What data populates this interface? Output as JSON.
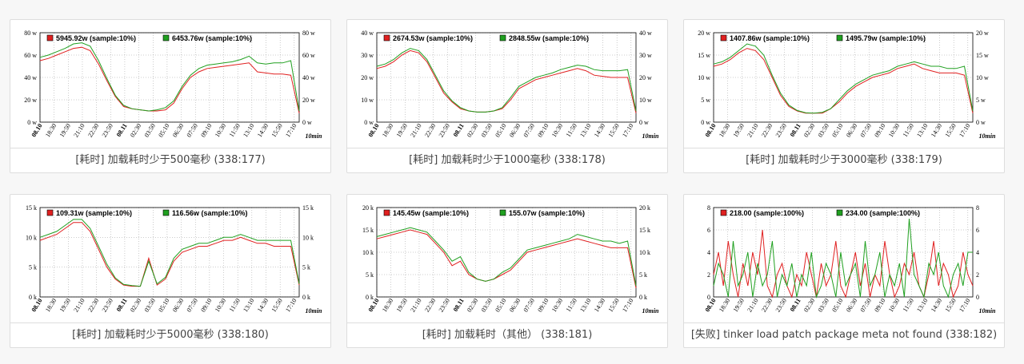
{
  "colors": {
    "red": "#e02020",
    "green": "#20a020",
    "grid": "#999999"
  },
  "xticks": [
    "08.10",
    "18:30",
    "19:50",
    "21:10",
    "22:30",
    "23:50",
    "08.11",
    "02:30",
    "03:50",
    "05:10",
    "06:30",
    "07:50",
    "09:10",
    "10:30",
    "11:50",
    "13:10",
    "14:30",
    "15:50",
    "17:10"
  ],
  "xbold": [
    "08.10",
    "08.11"
  ],
  "xunit": "10min",
  "chart_data": [
    {
      "type": "line",
      "title": "[耗时] 加载耗时少于500毫秒 (338:177)",
      "yticks": [
        "0 w",
        "20 w",
        "40 w",
        "60 w",
        "80 w"
      ],
      "ylim": [
        0,
        80
      ],
      "legend": [
        {
          "label": "5945.92w (sample:10%)",
          "color": "red"
        },
        {
          "label": "6453.76w (sample:10%)",
          "color": "green"
        }
      ],
      "series": [
        {
          "color": "red",
          "values": [
            55,
            57,
            60,
            63,
            66,
            67,
            64,
            52,
            37,
            23,
            14,
            12,
            11,
            10,
            10,
            11,
            17,
            30,
            40,
            45,
            48,
            49,
            50,
            51,
            52,
            53,
            45,
            44,
            43,
            43,
            42,
            8
          ]
        },
        {
          "color": "green",
          "values": [
            58,
            60,
            63,
            66,
            70,
            71,
            68,
            55,
            39,
            24,
            15,
            12,
            11,
            10,
            11,
            13,
            19,
            32,
            42,
            48,
            51,
            52,
            53,
            54,
            56,
            59,
            53,
            52,
            53,
            53,
            55,
            10
          ]
        }
      ]
    },
    {
      "type": "line",
      "title": "[耗时] 加载耗时少于1000毫秒 (338:178)",
      "yticks": [
        "0 w",
        "10 w",
        "20 w",
        "30 w",
        "40 w"
      ],
      "ylim": [
        0,
        40
      ],
      "legend": [
        {
          "label": "2674.53w (sample:10%)",
          "color": "red"
        },
        {
          "label": "2848.55w (sample:10%)",
          "color": "green"
        }
      ],
      "series": [
        {
          "color": "red",
          "values": [
            24,
            25,
            27,
            30,
            32,
            31,
            27,
            20,
            13,
            9,
            6,
            5,
            4.5,
            4.5,
            5,
            6,
            10,
            15,
            17,
            19,
            20,
            21,
            22,
            23,
            24,
            23,
            21,
            20.5,
            20,
            20,
            20,
            4
          ]
        },
        {
          "color": "green",
          "values": [
            25,
            26,
            28,
            31,
            33,
            32,
            28,
            21,
            14,
            9.5,
            6.5,
            5,
            4.5,
            4.5,
            5,
            6.5,
            11,
            16,
            18,
            20,
            21,
            22,
            23.5,
            24.5,
            25.5,
            25,
            23.5,
            23,
            23,
            23,
            23.5,
            5
          ]
        }
      ]
    },
    {
      "type": "line",
      "title": "[耗时] 加载耗时少于3000毫秒 (338:179)",
      "yticks": [
        "0 w",
        "5 w",
        "10 w",
        "15 w",
        "20 w"
      ],
      "ylim": [
        0,
        20
      ],
      "legend": [
        {
          "label": "1407.86w (sample:10%)",
          "color": "red"
        },
        {
          "label": "1495.79w (sample:10%)",
          "color": "green"
        }
      ],
      "series": [
        {
          "color": "red",
          "values": [
            12.5,
            13,
            14,
            15.5,
            16.5,
            16,
            14,
            10,
            6,
            3.5,
            2.5,
            2,
            2,
            2,
            3,
            4.5,
            6.5,
            8,
            9,
            10,
            10.5,
            11,
            12,
            12.5,
            13,
            12,
            11.5,
            11,
            11,
            11,
            10.5,
            2
          ]
        },
        {
          "color": "green",
          "values": [
            13,
            13.5,
            14.5,
            16,
            17.5,
            17,
            15,
            10.5,
            6.5,
            3.8,
            2.6,
            2.1,
            2,
            2.2,
            3,
            5,
            7,
            8.5,
            9.5,
            10.5,
            11,
            11.5,
            12.5,
            13,
            13.5,
            13,
            12.5,
            12.5,
            12,
            12,
            12.5,
            2.5
          ]
        }
      ]
    },
    {
      "type": "line",
      "title": "[耗时] 加载耗时少于5000毫秒 (338:180)",
      "yticks": [
        "0 k",
        "5 k",
        "10 k",
        "15 k"
      ],
      "ylim": [
        0,
        15
      ],
      "legend": [
        {
          "label": "109.31w (sample:10%)",
          "color": "red"
        },
        {
          "label": "116.56w (sample:10%)",
          "color": "green"
        }
      ],
      "series": [
        {
          "color": "red",
          "values": [
            9.5,
            10,
            10.5,
            11.5,
            12.5,
            12.5,
            11,
            8,
            5,
            3,
            2,
            1.8,
            1.8,
            6.5,
            2,
            3,
            6,
            7.5,
            8,
            8.5,
            8.5,
            9,
            9.5,
            9.5,
            10,
            9.5,
            9,
            9,
            8.5,
            8.5,
            8.5,
            2
          ]
        },
        {
          "color": "green",
          "values": [
            10,
            10.5,
            11,
            12,
            13,
            13,
            11.5,
            8.5,
            5.5,
            3.2,
            2.1,
            1.9,
            1.8,
            6,
            2.2,
            3.3,
            6.5,
            8,
            8.5,
            9,
            9,
            9.5,
            10,
            10,
            10.5,
            10,
            9.5,
            9.5,
            9.5,
            9.5,
            9.5,
            2.2
          ]
        }
      ]
    },
    {
      "type": "line",
      "title": "[耗时] 加载耗时（其他） (338:181)",
      "yticks": [
        "0 k",
        "5 k",
        "10 k",
        "15 k",
        "20 k"
      ],
      "ylim": [
        0,
        20
      ],
      "legend": [
        {
          "label": "145.45w (sample:10%)",
          "color": "red"
        },
        {
          "label": "155.07w (sample:10%)",
          "color": "green"
        }
      ],
      "series": [
        {
          "color": "red",
          "values": [
            13,
            13.5,
            14,
            14.5,
            15,
            14.5,
            14,
            12,
            10,
            7,
            8,
            5,
            4,
            3.5,
            4,
            5,
            6,
            8,
            10,
            10.5,
            11,
            11.5,
            12,
            12.5,
            13,
            12.5,
            12,
            11.5,
            11,
            11,
            11,
            2
          ]
        },
        {
          "color": "green",
          "values": [
            13.5,
            14,
            14.5,
            15,
            15.5,
            15,
            14.5,
            12.5,
            10.5,
            8,
            9,
            5.5,
            4,
            3.5,
            4,
            5.5,
            6.5,
            8.5,
            10.5,
            11,
            11.5,
            12,
            12.5,
            13,
            14,
            13.5,
            13,
            12.5,
            12.5,
            12,
            12.5,
            2.5
          ]
        }
      ]
    },
    {
      "type": "line",
      "title": "[失败] tinker load patch package meta not found (338:182)",
      "yticks": [
        "0",
        "2",
        "4",
        "6",
        "8"
      ],
      "ylim": [
        0,
        8
      ],
      "legend": [
        {
          "label": "218.00 (sample:100%)",
          "color": "red"
        },
        {
          "label": "234.00 (sample:100%)",
          "color": "green"
        }
      ],
      "series": [
        {
          "color": "red",
          "values": [
            2,
            4,
            1,
            5,
            2,
            0,
            3,
            1,
            4,
            2,
            6,
            1,
            0,
            2,
            3,
            1,
            0,
            2,
            1,
            4,
            2,
            0,
            3,
            1,
            2,
            5,
            1,
            0,
            2,
            4,
            1,
            3,
            0,
            2,
            1,
            5,
            2,
            0,
            1,
            3,
            2,
            4,
            1,
            0,
            2,
            5,
            1,
            3,
            2,
            0,
            1,
            4,
            2,
            1
          ]
        },
        {
          "color": "green",
          "values": [
            1,
            3,
            2,
            0,
            5,
            1,
            2,
            4,
            0,
            3,
            1,
            2,
            5,
            0,
            2,
            1,
            3,
            0,
            2,
            1,
            4,
            0,
            1,
            3,
            2,
            0,
            4,
            1,
            2,
            3,
            0,
            5,
            1,
            2,
            4,
            0,
            2,
            1,
            3,
            0,
            7,
            2,
            1,
            0,
            3,
            2,
            4,
            1,
            0,
            2,
            3,
            1,
            4,
            4
          ]
        }
      ]
    }
  ]
}
